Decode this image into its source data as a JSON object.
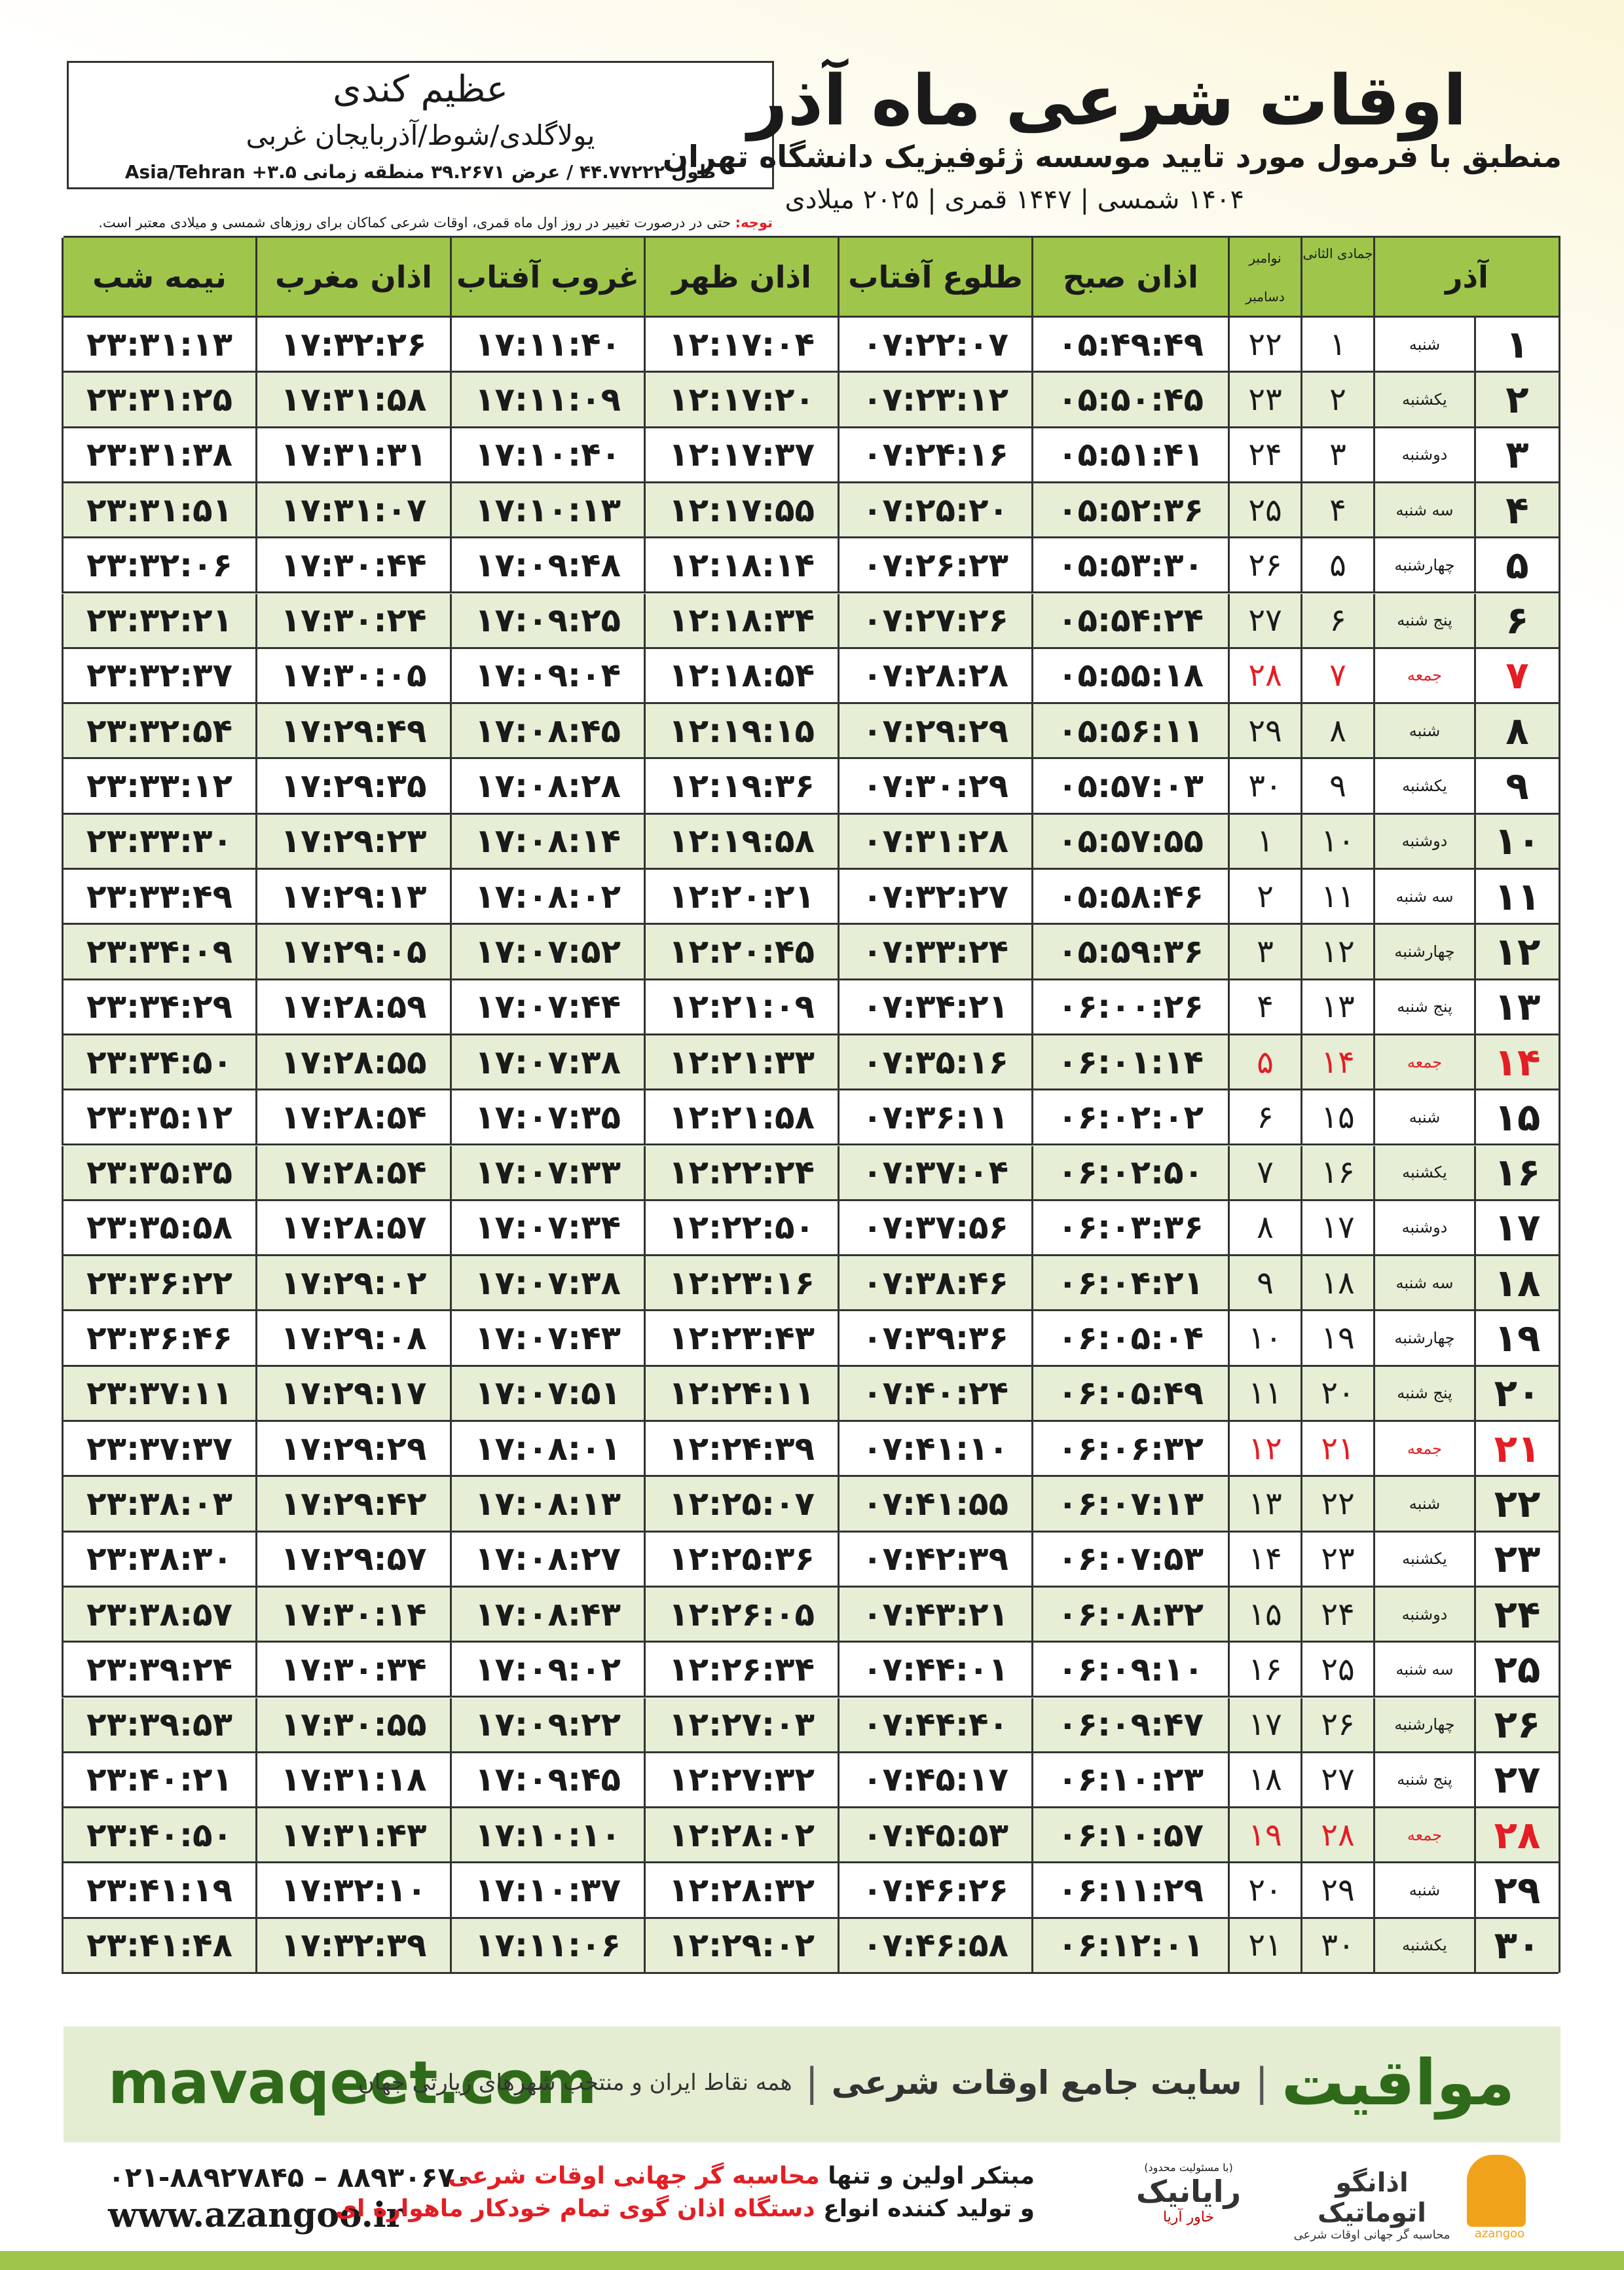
{
  "header": {
    "title": "اوقات شرعی ماه آذر",
    "subtitle": "منطبق با فرمول مورد تایید موسسه ژئوفیزیک دانشگاه تهران",
    "date_line": "۱۴۰۴ شمسی | ۱۴۴۷ قمری | ۲۰۲۵ میلادی",
    "location": {
      "name": "عظیم کندی",
      "region": "یولاگلدی/شوط/آذربایجان غربی",
      "coords": "طول ۴۴.۷۷۲۲۲ / عرض ۳۹.۲۶۷۱ منطقه زمانی ۳.۵+ Asia/Tehran"
    },
    "note": {
      "label": "توجه:",
      "text": "حتی در درصورت تغییر در روز اول ماه قمری، اوقات شرعی کماکان برای روزهای شمسی و میلادی معتبر است."
    }
  },
  "table": {
    "header_cells": [
      "آذر",
      "جمادی الثانی",
      "نوامبر",
      "دسامبر",
      "اذان صبح",
      "طلوع آفتاب",
      "اذان ظهر",
      "غروب آفتاب",
      "اذان مغرب",
      "نیمه شب"
    ],
    "rows": [
      {
        "cells": [
          "۱",
          "شنبه",
          "۱",
          "۲۲",
          "۰۵:۴۹:۴۹",
          "۰۷:۲۲:۰۷",
          "۱۲:۱۷:۰۴",
          "۱۷:۱۱:۴۰",
          "۱۷:۳۲:۲۶",
          "۲۳:۳۱:۱۳"
        ]
      },
      {
        "cells": [
          "۲",
          "یکشنبه",
          "۲",
          "۲۳",
          "۰۵:۵۰:۴۵",
          "۰۷:۲۳:۱۲",
          "۱۲:۱۷:۲۰",
          "۱۷:۱۱:۰۹",
          "۱۷:۳۱:۵۸",
          "۲۳:۳۱:۲۵"
        ]
      },
      {
        "cells": [
          "۳",
          "دوشنبه",
          "۳",
          "۲۴",
          "۰۵:۵۱:۴۱",
          "۰۷:۲۴:۱۶",
          "۱۲:۱۷:۳۷",
          "۱۷:۱۰:۴۰",
          "۱۷:۳۱:۳۱",
          "۲۳:۳۱:۳۸"
        ]
      },
      {
        "cells": [
          "۴",
          "سه شنبه",
          "۴",
          "۲۵",
          "۰۵:۵۲:۳۶",
          "۰۷:۲۵:۲۰",
          "۱۲:۱۷:۵۵",
          "۱۷:۱۰:۱۳",
          "۱۷:۳۱:۰۷",
          "۲۳:۳۱:۵۱"
        ]
      },
      {
        "cells": [
          "۵",
          "چهارشنبه",
          "۵",
          "۲۶",
          "۰۵:۵۳:۳۰",
          "۰۷:۲۶:۲۳",
          "۱۲:۱۸:۱۴",
          "۱۷:۰۹:۴۸",
          "۱۷:۳۰:۴۴",
          "۲۳:۳۲:۰۶"
        ]
      },
      {
        "cells": [
          "۶",
          "پنج شنبه",
          "۶",
          "۲۷",
          "۰۵:۵۴:۲۴",
          "۰۷:۲۷:۲۶",
          "۱۲:۱۸:۳۴",
          "۱۷:۰۹:۲۵",
          "۱۷:۳۰:۲۴",
          "۲۳:۳۲:۲۱"
        ]
      },
      {
        "cells": [
          "۷",
          "جمعه",
          "۷",
          "۲۸",
          "۰۵:۵۵:۱۸",
          "۰۷:۲۸:۲۸",
          "۱۲:۱۸:۵۴",
          "۱۷:۰۹:۰۴",
          "۱۷:۳۰:۰۵",
          "۲۳:۳۲:۳۷"
        ],
        "color": "#e31e24"
      },
      {
        "cells": [
          "۸",
          "شنبه",
          "۸",
          "۲۹",
          "۰۵:۵۶:۱۱",
          "۰۷:۲۹:۲۹",
          "۱۲:۱۹:۱۵",
          "۱۷:۰۸:۴۵",
          "۱۷:۲۹:۴۹",
          "۲۳:۳۲:۵۴"
        ]
      },
      {
        "cells": [
          "۹",
          "یکشنبه",
          "۹",
          "۳۰",
          "۰۵:۵۷:۰۳",
          "۰۷:۳۰:۲۹",
          "۱۲:۱۹:۳۶",
          "۱۷:۰۸:۲۸",
          "۱۷:۲۹:۳۵",
          "۲۳:۳۳:۱۲"
        ]
      },
      {
        "cells": [
          "۱۰",
          "دوشنبه",
          "۱۰",
          "۱",
          "۰۵:۵۷:۵۵",
          "۰۷:۳۱:۲۸",
          "۱۲:۱۹:۵۸",
          "۱۷:۰۸:۱۴",
          "۱۷:۲۹:۲۳",
          "۲۳:۳۳:۳۰"
        ]
      },
      {
        "cells": [
          "۱۱",
          "سه شنبه",
          "۱۱",
          "۲",
          "۰۵:۵۸:۴۶",
          "۰۷:۳۲:۲۷",
          "۱۲:۲۰:۲۱",
          "۱۷:۰۸:۰۲",
          "۱۷:۲۹:۱۳",
          "۲۳:۳۳:۴۹"
        ]
      },
      {
        "cells": [
          "۱۲",
          "چهارشنبه",
          "۱۲",
          "۳",
          "۰۵:۵۹:۳۶",
          "۰۷:۳۳:۲۴",
          "۱۲:۲۰:۴۵",
          "۱۷:۰۷:۵۲",
          "۱۷:۲۹:۰۵",
          "۲۳:۳۴:۰۹"
        ]
      },
      {
        "cells": [
          "۱۳",
          "پنج شنبه",
          "۱۳",
          "۴",
          "۰۶:۰۰:۲۶",
          "۰۷:۳۴:۲۱",
          "۱۲:۲۱:۰۹",
          "۱۷:۰۷:۴۴",
          "۱۷:۲۸:۵۹",
          "۲۳:۳۴:۲۹"
        ]
      },
      {
        "cells": [
          "۱۴",
          "جمعه",
          "۱۴",
          "۵",
          "۰۶:۰۱:۱۴",
          "۰۷:۳۵:۱۶",
          "۱۲:۲۱:۳۳",
          "۱۷:۰۷:۳۸",
          "۱۷:۲۸:۵۵",
          "۲۳:۳۴:۵۰"
        ],
        "color": "#e31e24"
      },
      {
        "cells": [
          "۱۵",
          "شنبه",
          "۱۵",
          "۶",
          "۰۶:۰۲:۰۲",
          "۰۷:۳۶:۱۱",
          "۱۲:۲۱:۵۸",
          "۱۷:۰۷:۳۵",
          "۱۷:۲۸:۵۴",
          "۲۳:۳۵:۱۲"
        ]
      },
      {
        "cells": [
          "۱۶",
          "یکشنبه",
          "۱۶",
          "۷",
          "۰۶:۰۲:۵۰",
          "۰۷:۳۷:۰۴",
          "۱۲:۲۲:۲۴",
          "۱۷:۰۷:۳۳",
          "۱۷:۲۸:۵۴",
          "۲۳:۳۵:۳۵"
        ]
      },
      {
        "cells": [
          "۱۷",
          "دوشنبه",
          "۱۷",
          "۸",
          "۰۶:۰۳:۳۶",
          "۰۷:۳۷:۵۶",
          "۱۲:۲۲:۵۰",
          "۱۷:۰۷:۳۴",
          "۱۷:۲۸:۵۷",
          "۲۳:۳۵:۵۸"
        ]
      },
      {
        "cells": [
          "۱۸",
          "سه شنبه",
          "۱۸",
          "۹",
          "۰۶:۰۴:۲۱",
          "۰۷:۳۸:۴۶",
          "۱۲:۲۳:۱۶",
          "۱۷:۰۷:۳۸",
          "۱۷:۲۹:۰۲",
          "۲۳:۳۶:۲۲"
        ]
      },
      {
        "cells": [
          "۱۹",
          "چهارشنبه",
          "۱۹",
          "۱۰",
          "۰۶:۰۵:۰۴",
          "۰۷:۳۹:۳۶",
          "۱۲:۲۳:۴۳",
          "۱۷:۰۷:۴۳",
          "۱۷:۲۹:۰۸",
          "۲۳:۳۶:۴۶"
        ]
      },
      {
        "cells": [
          "۲۰",
          "پنج شنبه",
          "۲۰",
          "۱۱",
          "۰۶:۰۵:۴۹",
          "۰۷:۴۰:۲۴",
          "۱۲:۲۴:۱۱",
          "۱۷:۰۷:۵۱",
          "۱۷:۲۹:۱۷",
          "۲۳:۳۷:۱۱"
        ]
      },
      {
        "cells": [
          "۲۱",
          "جمعه",
          "۲۱",
          "۱۲",
          "۰۶:۰۶:۳۲",
          "۰۷:۴۱:۱۰",
          "۱۲:۲۴:۳۹",
          "۱۷:۰۸:۰۱",
          "۱۷:۲۹:۲۹",
          "۲۳:۳۷:۳۷"
        ],
        "color": "#e31e24"
      },
      {
        "cells": [
          "۲۲",
          "شنبه",
          "۲۲",
          "۱۳",
          "۰۶:۰۷:۱۳",
          "۰۷:۴۱:۵۵",
          "۱۲:۲۵:۰۷",
          "۱۷:۰۸:۱۳",
          "۱۷:۲۹:۴۲",
          "۲۳:۳۸:۰۳"
        ]
      },
      {
        "cells": [
          "۲۳",
          "یکشنبه",
          "۲۳",
          "۱۴",
          "۰۶:۰۷:۵۳",
          "۰۷:۴۲:۳۹",
          "۱۲:۲۵:۳۶",
          "۱۷:۰۸:۲۷",
          "۱۷:۲۹:۵۷",
          "۲۳:۳۸:۳۰"
        ]
      },
      {
        "cells": [
          "۲۴",
          "دوشنبه",
          "۲۴",
          "۱۵",
          "۰۶:۰۸:۳۲",
          "۰۷:۴۳:۲۱",
          "۱۲:۲۶:۰۵",
          "۱۷:۰۸:۴۳",
          "۱۷:۳۰:۱۴",
          "۲۳:۳۸:۵۷"
        ]
      },
      {
        "cells": [
          "۲۵",
          "سه شنبه",
          "۲۵",
          "۱۶",
          "۰۶:۰۹:۱۰",
          "۰۷:۴۴:۰۱",
          "۱۲:۲۶:۳۴",
          "۱۷:۰۹:۰۲",
          "۱۷:۳۰:۳۴",
          "۲۳:۳۹:۲۴"
        ]
      },
      {
        "cells": [
          "۲۶",
          "چهارشنبه",
          "۲۶",
          "۱۷",
          "۰۶:۰۹:۴۷",
          "۰۷:۴۴:۴۰",
          "۱۲:۲۷:۰۳",
          "۱۷:۰۹:۲۲",
          "۱۷:۳۰:۵۵",
          "۲۳:۳۹:۵۳"
        ]
      },
      {
        "cells": [
          "۲۷",
          "پنج شنبه",
          "۲۷",
          "۱۸",
          "۰۶:۱۰:۲۳",
          "۰۷:۴۵:۱۷",
          "۱۲:۲۷:۳۲",
          "۱۷:۰۹:۴۵",
          "۱۷:۳۱:۱۸",
          "۲۳:۴۰:۲۱"
        ]
      },
      {
        "cells": [
          "۲۸",
          "جمعه",
          "۲۸",
          "۱۹",
          "۰۶:۱۰:۵۷",
          "۰۷:۴۵:۵۳",
          "۱۲:۲۸:۰۲",
          "۱۷:۱۰:۱۰",
          "۱۷:۳۱:۴۳",
          "۲۳:۴۰:۵۰"
        ],
        "color": "#e31e24"
      },
      {
        "cells": [
          "۲۹",
          "شنبه",
          "۲۹",
          "۲۰",
          "۰۶:۱۱:۲۹",
          "۰۷:۴۶:۲۶",
          "۱۲:۲۸:۳۲",
          "۱۷:۱۰:۳۷",
          "۱۷:۳۲:۱۰",
          "۲۳:۴۱:۱۹"
        ]
      },
      {
        "cells": [
          "۳۰",
          "یکشنبه",
          "۳۰",
          "۲۱",
          "۰۶:۱۲:۰۱",
          "۰۷:۴۶:۵۸",
          "۱۲:۲۹:۰۲",
          "۱۷:۱۱:۰۶",
          "۱۷:۳۲:۳۹",
          "۲۳:۴۱:۴۸"
        ]
      }
    ]
  },
  "banner": {
    "brand": "مواقیت",
    "tagline": "سایت جامع اوقات شرعی",
    "subtagline": "همه نقاط ایران و منتخب شهرهای زیارتی جهان",
    "url": "mavaqeet.com"
  },
  "footer": {
    "phone": "۰۲۱-۸۸۹۲۷۸۴۵ – ۸۸۹۳۰۶۷۰",
    "website": "www.azangoo.ir",
    "line1_a": "مبتکر اولین و تنها",
    "line1_b": "محاسبه گر جهانی اوقات شرعی",
    "line2_a": "و تولید کننده انواع",
    "line2_b": "دستگاه اذان گوی تمام خودکار ماهواره ای",
    "logo_rayanik": "رایانیک",
    "logo_rayanik_sub": "خاور آریا",
    "logo_rayanik_note": "(با مسئولیت محدود)",
    "logo_azangoo": "اذانگو اتوماتیک",
    "logo_azangoo_sub": "محاسبه گر جهانی اوقات شرعی",
    "logo_azangoo_en": "azangoo"
  }
}
